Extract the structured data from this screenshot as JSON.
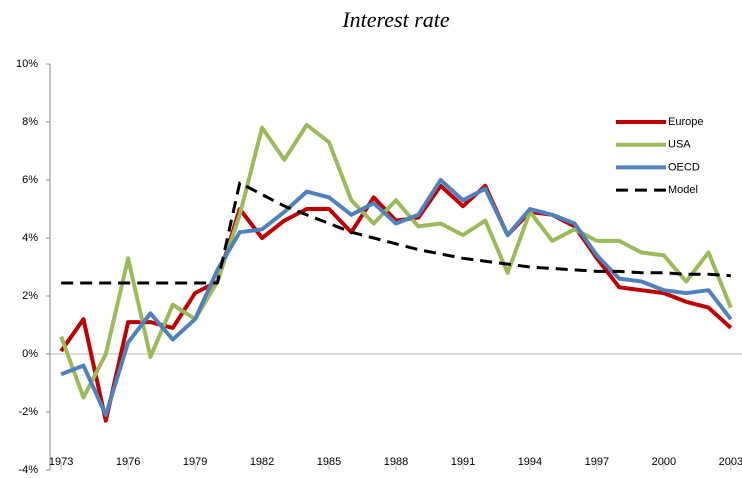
{
  "chart_data": {
    "type": "line",
    "title": "Interest rate",
    "x": [
      1973,
      1974,
      1975,
      1976,
      1977,
      1978,
      1979,
      1980,
      1981,
      1982,
      1983,
      1984,
      1985,
      1986,
      1987,
      1988,
      1989,
      1990,
      1991,
      1992,
      1993,
      1994,
      1995,
      1996,
      1997,
      1998,
      1999,
      2000,
      2001,
      2002,
      2003
    ],
    "xlim": [
      1972.5,
      2003.5
    ],
    "xticks": [
      1973,
      1976,
      1979,
      1982,
      1985,
      1988,
      1991,
      1994,
      1997,
      2000,
      2003
    ],
    "ylim": [
      -4,
      10
    ],
    "yticks": [
      {
        "value": -4,
        "label": "-4%"
      },
      {
        "value": -2,
        "label": "-2%"
      },
      {
        "value": 0,
        "label": "0%"
      },
      {
        "value": 2,
        "label": "2%"
      },
      {
        "value": 4,
        "label": "4%"
      },
      {
        "value": 6,
        "label": "6%"
      },
      {
        "value": 8,
        "label": "8%"
      },
      {
        "value": 10,
        "label": "10%"
      }
    ],
    "legend": "upper right",
    "series": [
      {
        "name": "Europe",
        "color": "#c00000",
        "values": [
          0.1,
          1.2,
          -2.3,
          1.1,
          1.1,
          0.9,
          2.1,
          2.5,
          5.0,
          4.0,
          4.6,
          5.0,
          5.0,
          4.2,
          5.4,
          4.6,
          4.7,
          5.8,
          5.1,
          5.8,
          4.1,
          4.9,
          4.8,
          4.4,
          3.3,
          2.3,
          2.2,
          2.1,
          1.8,
          1.6,
          0.9
        ]
      },
      {
        "name": "USA",
        "color": "#9bbb59",
        "values": [
          0.6,
          -1.5,
          0.0,
          3.3,
          -0.1,
          1.7,
          1.2,
          2.5,
          4.8,
          7.8,
          6.7,
          7.9,
          7.3,
          5.3,
          4.5,
          5.3,
          4.4,
          4.5,
          4.1,
          4.6,
          2.8,
          4.9,
          3.9,
          4.3,
          3.9,
          3.9,
          3.5,
          3.4,
          2.5,
          3.5,
          1.6
        ]
      },
      {
        "name": "OECD",
        "color": "#4f81bd",
        "values": [
          -0.7,
          -0.4,
          -2.1,
          0.4,
          1.4,
          0.5,
          1.2,
          2.9,
          4.2,
          4.3,
          4.9,
          5.6,
          5.4,
          4.8,
          5.2,
          4.5,
          4.8,
          6.0,
          5.3,
          5.7,
          4.1,
          5.0,
          4.8,
          4.5,
          3.4,
          2.6,
          2.5,
          2.2,
          2.1,
          2.2,
          1.2
        ]
      },
      {
        "name": "Model",
        "color": "#000000",
        "dashed": true,
        "values": [
          2.45,
          2.45,
          2.45,
          2.45,
          2.45,
          2.45,
          2.45,
          2.45,
          5.9,
          5.5,
          5.1,
          4.8,
          4.5,
          4.2,
          4.0,
          3.8,
          3.6,
          3.45,
          3.3,
          3.2,
          3.1,
          3.0,
          2.95,
          2.9,
          2.85,
          2.85,
          2.8,
          2.8,
          2.75,
          2.75,
          2.7
        ]
      }
    ]
  }
}
